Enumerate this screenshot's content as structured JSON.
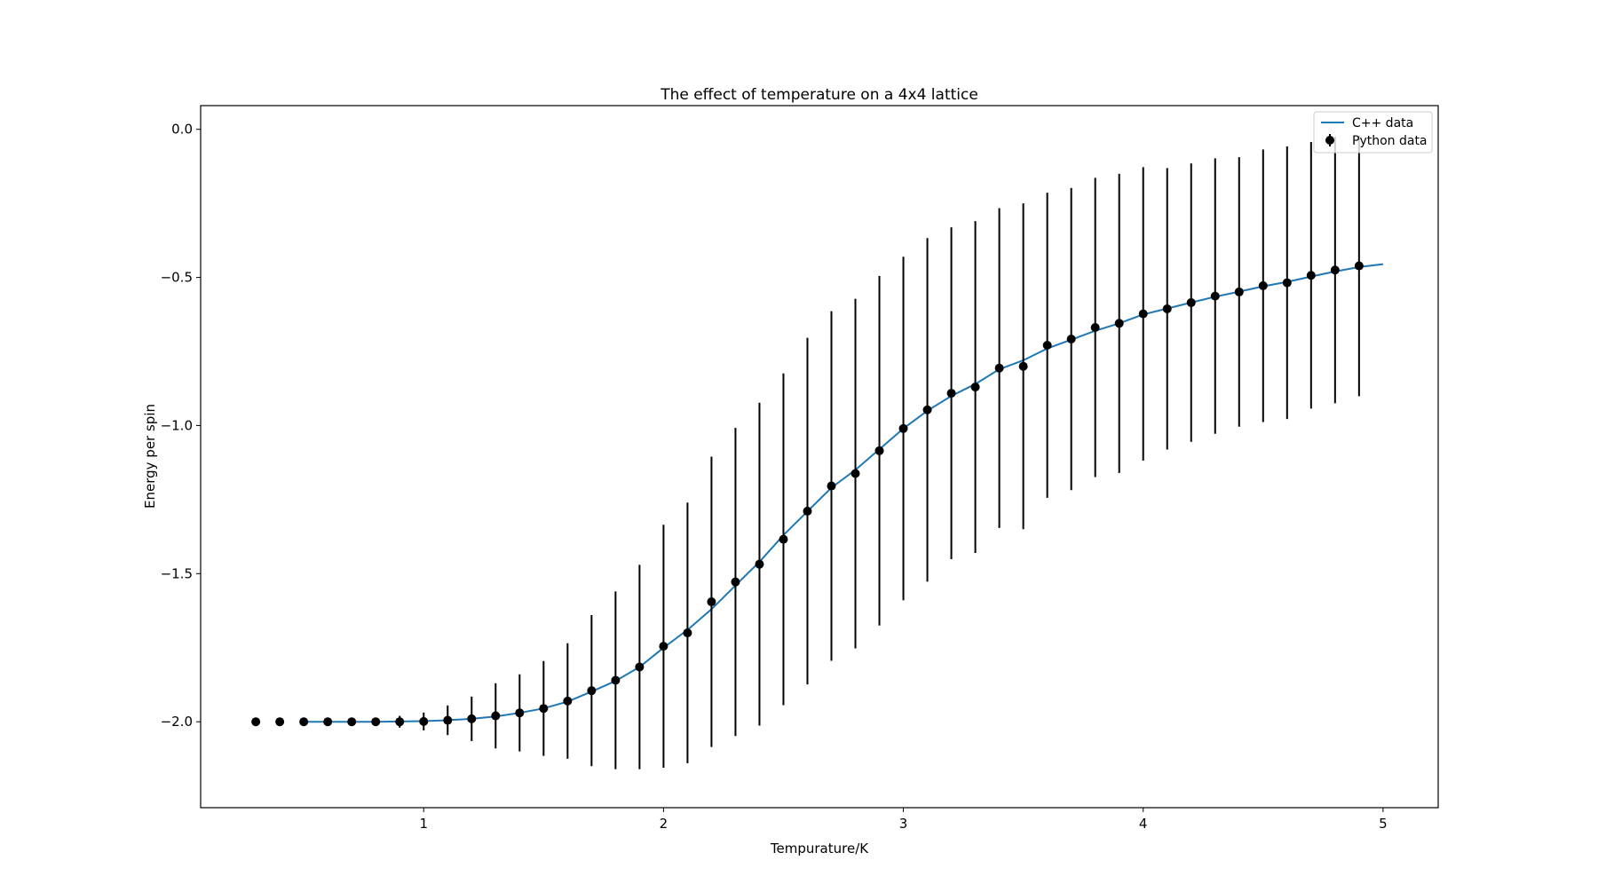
{
  "chart_data": {
    "type": "line",
    "title": "The effect of temperature on a 4x4 lattice",
    "xlabel": "Tempurature/K",
    "ylabel": "Energy per spin",
    "xlim": [
      0.07,
      5.23
    ],
    "ylim": [
      -2.29,
      0.08
    ],
    "xticks": [
      1,
      2,
      3,
      4,
      5
    ],
    "xtick_labels": [
      "1",
      "2",
      "3",
      "4",
      "5"
    ],
    "yticks": [
      -2.0,
      -1.5,
      -1.0,
      -0.5,
      0.0
    ],
    "ytick_labels": [
      "−2.0",
      "−1.5",
      "−1.0",
      "−0.5",
      "0.0"
    ],
    "grid": false,
    "legend_position": "top-right",
    "series": [
      {
        "name": "C++ data",
        "kind": "line",
        "color": "#1f77b4",
        "x": [
          0.5,
          0.6,
          0.7,
          0.8,
          0.9,
          1.0,
          1.1,
          1.2,
          1.3,
          1.4,
          1.5,
          1.6,
          1.7,
          1.8,
          1.9,
          2.0,
          2.1,
          2.2,
          2.3,
          2.4,
          2.5,
          2.6,
          2.7,
          2.8,
          2.9,
          3.0,
          3.1,
          3.2,
          3.3,
          3.4,
          3.5,
          3.6,
          3.7,
          3.8,
          3.9,
          4.0,
          4.1,
          4.2,
          4.3,
          4.4,
          4.5,
          4.6,
          4.7,
          4.8,
          4.9,
          5.0
        ],
        "y": [
          -2.0,
          -2.0,
          -2.0,
          -2.0,
          -1.999,
          -1.998,
          -1.995,
          -1.99,
          -1.982,
          -1.97,
          -1.955,
          -1.932,
          -1.898,
          -1.862,
          -1.815,
          -1.75,
          -1.69,
          -1.62,
          -1.54,
          -1.46,
          -1.37,
          -1.29,
          -1.21,
          -1.15,
          -1.08,
          -1.01,
          -0.95,
          -0.9,
          -0.86,
          -0.81,
          -0.78,
          -0.74,
          -0.71,
          -0.68,
          -0.655,
          -0.625,
          -0.605,
          -0.585,
          -0.565,
          -0.548,
          -0.53,
          -0.515,
          -0.497,
          -0.48,
          -0.465,
          -0.455
        ]
      },
      {
        "name": "Python data",
        "kind": "errorbar",
        "color": "#000000",
        "x": [
          0.3,
          0.4,
          0.5,
          0.6,
          0.7,
          0.8,
          0.9,
          1.0,
          1.1,
          1.2,
          1.3,
          1.4,
          1.5,
          1.6,
          1.7,
          1.8,
          1.9,
          2.0,
          2.1,
          2.2,
          2.3,
          2.4,
          2.5,
          2.6,
          2.7,
          2.8,
          2.9,
          3.0,
          3.1,
          3.2,
          3.3,
          3.4,
          3.5,
          3.6,
          3.7,
          3.8,
          3.9,
          4.0,
          4.1,
          4.2,
          4.3,
          4.4,
          4.5,
          4.6,
          4.7,
          4.8,
          4.9
        ],
        "y": [
          -2.0,
          -2.0,
          -2.0,
          -2.0,
          -2.0,
          -2.0,
          -2.0,
          -1.999,
          -1.995,
          -1.99,
          -1.98,
          -1.97,
          -1.955,
          -1.93,
          -1.895,
          -1.86,
          -1.815,
          -1.745,
          -1.7,
          -1.595,
          -1.528,
          -1.468,
          -1.384,
          -1.289,
          -1.204,
          -1.162,
          -1.085,
          -1.01,
          -0.947,
          -0.891,
          -0.87,
          -0.806,
          -0.8,
          -0.729,
          -0.708,
          -0.669,
          -0.655,
          -0.623,
          -0.606,
          -0.585,
          -0.563,
          -0.549,
          -0.528,
          -0.518,
          -0.493,
          -0.475,
          -0.461
        ],
        "yerr": [
          0,
          0,
          0,
          0,
          0,
          0,
          0.02,
          0.03,
          0.05,
          0.075,
          0.11,
          0.13,
          0.16,
          0.195,
          0.255,
          0.3,
          0.345,
          0.41,
          0.44,
          0.49,
          0.52,
          0.545,
          0.56,
          0.585,
          0.59,
          0.59,
          0.59,
          0.58,
          0.58,
          0.56,
          0.56,
          0.54,
          0.55,
          0.515,
          0.51,
          0.505,
          0.505,
          0.495,
          0.475,
          0.47,
          0.465,
          0.455,
          0.46,
          0.46,
          0.45,
          0.45,
          0.44
        ]
      }
    ]
  }
}
